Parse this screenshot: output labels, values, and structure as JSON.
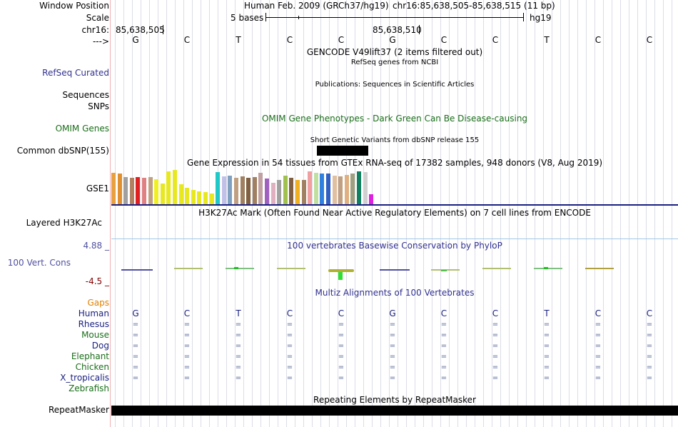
{
  "header": {
    "window_position_label": "Window Position",
    "scale_label": "Scale",
    "chrom_label": "chr16:",
    "strand_label": "--->",
    "assembly_text": "Human Feb. 2009 (GRCh37/hg19)",
    "position_text": "chr16:85,638,505-85,638,515 (11 bp)",
    "scale_text": "5 bases",
    "db_text": "hg19",
    "coord_left": "85,638,505",
    "coord_mid": "85,638,510"
  },
  "sequence": [
    "G",
    "C",
    "T",
    "C",
    "C",
    "G",
    "C",
    "C",
    "T",
    "C",
    "C"
  ],
  "tracks": {
    "gencode_title": "GENCODE V49lift37 (2 items filtered out)",
    "refseq_title": "RefSeq genes from NCBI",
    "refseq_label": "RefSeq Curated",
    "pubs_title": "Publications: Sequences in Scientific Articles",
    "sequences_label": "Sequences",
    "snps_label": "SNPs",
    "omim_title": "OMIM Gene Phenotypes - Dark Green Can Be Disease-causing",
    "omim_label": "OMIM Genes",
    "dbsnp_title": "Short Genetic Variants from dbSNP release 155",
    "dbsnp_label": "Common dbSNP(155)",
    "gtex_title": "Gene Expression in 54 tissues from GTEx RNA-seq of 17382 samples, 948 donors (V8, Aug 2019)",
    "gtex_label": "GSE1",
    "h3k27ac_title": "H3K27Ac Mark (Often Found Near Active Regulatory Elements) on 7 cell lines from ENCODE",
    "h3k27ac_label": "Layered H3K27Ac",
    "phylop_title": "100 vertebrates Basewise Conservation by PhyloP",
    "phylop_label": "100 Vert. Cons",
    "phylop_max": "4.88 _",
    "phylop_min": "-4.5 _",
    "multiz_title": "Multiz Alignments of 100 Vertebrates",
    "gaps_label": "Gaps",
    "species": [
      "Human",
      "Rhesus",
      "Mouse",
      "Dog",
      "Elephant",
      "Chicken",
      "X_tropicalis",
      "Zebrafish"
    ],
    "repeat_title": "Repeating Elements by RepeatMasker",
    "repeat_label": "RepeatMasker"
  },
  "gtex_bars": [
    {
      "c": "#e8a040",
      "v": 0.92
    },
    {
      "c": "#e09030",
      "v": 0.9
    },
    {
      "c": "#a0a0a0",
      "v": 0.8
    },
    {
      "c": "#b08060",
      "v": 0.78
    },
    {
      "c": "#e02020",
      "v": 0.8
    },
    {
      "c": "#e08080",
      "v": 0.78
    },
    {
      "c": "#c0a080",
      "v": 0.8
    },
    {
      "c": "#f0f020",
      "v": 0.72
    },
    {
      "c": "#e8e820",
      "v": 0.6
    },
    {
      "c": "#e8e820",
      "v": 0.95
    },
    {
      "c": "#e8e820",
      "v": 1.0
    },
    {
      "c": "#e8e820",
      "v": 0.58
    },
    {
      "c": "#e8e820",
      "v": 0.48
    },
    {
      "c": "#e8e820",
      "v": 0.42
    },
    {
      "c": "#e8e820",
      "v": 0.38
    },
    {
      "c": "#e8e820",
      "v": 0.36
    },
    {
      "c": "#e8e820",
      "v": 0.32
    },
    {
      "c": "#20c8c8",
      "v": 0.94
    },
    {
      "c": "#c0c0e8",
      "v": 0.82
    },
    {
      "c": "#80a0c0",
      "v": 0.84
    },
    {
      "c": "#c0a080",
      "v": 0.78
    },
    {
      "c": "#a08060",
      "v": 0.82
    },
    {
      "c": "#806040",
      "v": 0.78
    },
    {
      "c": "#a08060",
      "v": 0.8
    },
    {
      "c": "#c0a0a0",
      "v": 0.92
    },
    {
      "c": "#a060c0",
      "v": 0.76
    },
    {
      "c": "#e0b0c0",
      "v": 0.62
    },
    {
      "c": "#a0a0a0",
      "v": 0.7
    },
    {
      "c": "#a0c050",
      "v": 0.84
    },
    {
      "c": "#806040",
      "v": 0.78
    },
    {
      "c": "#f0b020",
      "v": 0.7
    },
    {
      "c": "#a08060",
      "v": 0.7
    },
    {
      "c": "#f0a0a0",
      "v": 0.96
    },
    {
      "c": "#c0e0a0",
      "v": 0.92
    },
    {
      "c": "#3080e0",
      "v": 0.9
    },
    {
      "c": "#3060c0",
      "v": 0.9
    },
    {
      "c": "#e0c0a0",
      "v": 0.84
    },
    {
      "c": "#c0a080",
      "v": 0.82
    },
    {
      "c": "#e0b080",
      "v": 0.86
    },
    {
      "c": "#a0a080",
      "v": 0.9
    },
    {
      "c": "#108060",
      "v": 0.96
    },
    {
      "c": "#d0d0d0",
      "v": 0.94
    },
    {
      "c": "#e020e0",
      "v": 0.3
    }
  ],
  "colors": {
    "label_navy": "#303090",
    "label_green": "#1a6e1a",
    "label_orange": "#e08000",
    "phylop_blue": "#5050a0",
    "phylop_red": "#800000",
    "gtex_axis": "#1a2080",
    "h3k_line": "#a0c8e8"
  }
}
